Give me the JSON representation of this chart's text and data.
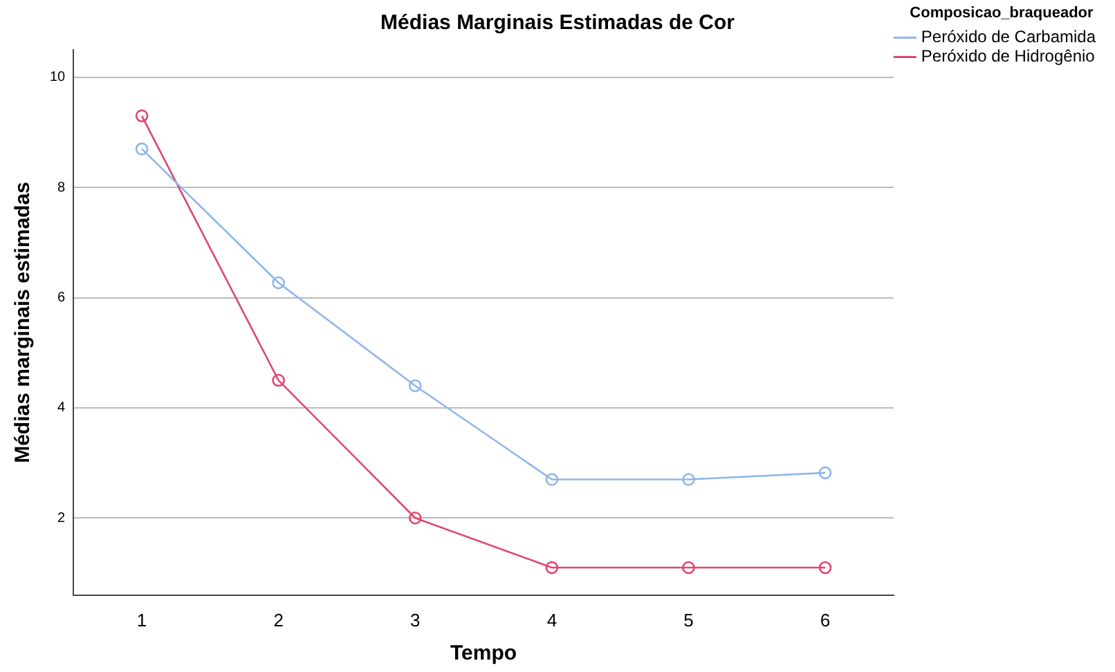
{
  "chart_data": {
    "type": "line",
    "title": "Médias Marginais Estimadas de Cor",
    "xlabel": "Tempo",
    "ylabel": "Médias marginais estimadas",
    "legend_title": "Composicao_braqueador",
    "categories": [
      "1",
      "2",
      "3",
      "4",
      "5",
      "6"
    ],
    "series": [
      {
        "name": "Peróxido de Carbamida",
        "color": "#8fb6ea",
        "values": [
          8.7,
          6.27,
          4.4,
          2.7,
          2.7,
          2.82
        ]
      },
      {
        "name": "Peróxido de Hidrogênio",
        "color": "#e0466e",
        "values": [
          9.3,
          4.5,
          2.0,
          1.1,
          1.1,
          1.1
        ]
      }
    ],
    "ylim": [
      0.6,
      10.5
    ],
    "yticks": [
      2,
      4,
      6,
      8,
      10
    ],
    "grid": "y",
    "legend": "top right",
    "marker": "circle",
    "line_style": "solid"
  }
}
